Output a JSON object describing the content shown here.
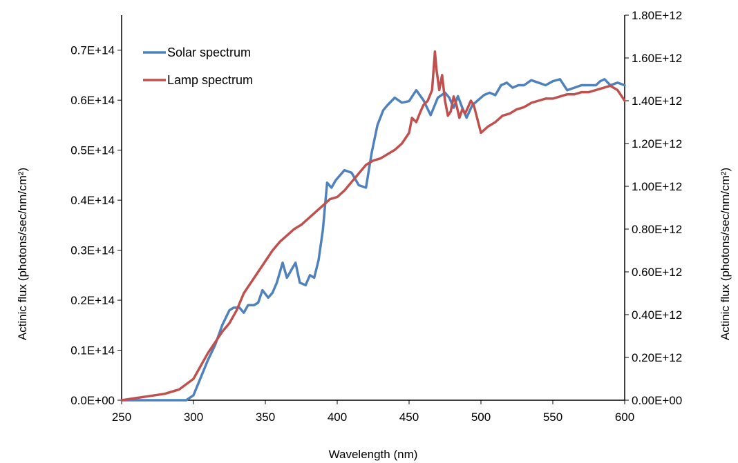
{
  "chart_data": {
    "type": "line",
    "xlabel": "Wavelength (nm)",
    "ylabel_left": "Actinic flux (photons/sec/nm/cm²)",
    "ylabel_right": "Actinic flux (photons/sec/nm/cm²)",
    "xlim": [
      250,
      600
    ],
    "ylim_left": [
      0,
      77000000000000.0
    ],
    "ylim_right": [
      0,
      1800000000000.0
    ],
    "x_ticks": [
      "250",
      "300",
      "350",
      "400",
      "450",
      "500",
      "550",
      "600"
    ],
    "y_left_ticks": [
      "0.0E+00",
      "0.1E+14",
      "0.2E+14",
      "0.3E+14",
      "0.4E+14",
      "0.5E+14",
      "0.6E+14",
      "0.7E+14"
    ],
    "y_right_ticks": [
      "0.00E+00",
      "0.20E+12",
      "0.40E+12",
      "0.60E+12",
      "0.80E+12",
      "1.00E+12",
      "1.20E+12",
      "1.40E+12",
      "1.60E+12",
      "1.80E+12"
    ],
    "grid": false,
    "legend_position": "top-left",
    "series": [
      {
        "name": "Solar spectrum",
        "axis": "left",
        "color": "#4f81bd",
        "x": [
          250,
          270,
          290,
          295,
          300,
          305,
          310,
          315,
          320,
          325,
          328,
          332,
          335,
          338,
          342,
          345,
          348,
          352,
          355,
          358,
          362,
          365,
          368,
          371,
          374,
          378,
          381,
          384,
          387,
          390,
          393,
          396,
          399,
          402,
          405,
          410,
          415,
          420,
          424,
          428,
          432,
          435,
          440,
          445,
          450,
          455,
          460,
          465,
          470,
          475,
          478,
          481,
          484,
          487,
          490,
          494,
          498,
          502,
          506,
          510,
          514,
          518,
          522,
          526,
          530,
          535,
          540,
          545,
          550,
          555,
          560,
          565,
          570,
          575,
          580,
          583,
          586,
          590,
          595,
          600
        ],
        "values": [
          0,
          0,
          0,
          0,
          1000000000000.0,
          4500000000000.0,
          8000000000000.0,
          11000000000000.0,
          15000000000000.0,
          18000000000000.0,
          18500000000000.0,
          18500000000000.0,
          17500000000000.0,
          19000000000000.0,
          19000000000000.0,
          19500000000000.0,
          22000000000000.0,
          20500000000000.0,
          21500000000000.0,
          23500000000000.0,
          27500000000000.0,
          24500000000000.0,
          26000000000000.0,
          27500000000000.0,
          23500000000000.0,
          23000000000000.0,
          25000000000000.0,
          24500000000000.0,
          28000000000000.0,
          34000000000000.0,
          43500000000000.0,
          42500000000000.0,
          44000000000000.0,
          45000000000000.0,
          46000000000000.0,
          45500000000000.0,
          43000000000000.0,
          42500000000000.0,
          49500000000000.0,
          55000000000000.0,
          58000000000000.0,
          59000000000000.0,
          60500000000000.0,
          59500000000000.0,
          59800000000000.0,
          62000000000000.0,
          60000000000000.0,
          57000000000000.0,
          60500000000000.0,
          61500000000000.0,
          60500000000000.0,
          58500000000000.0,
          60800000000000.0,
          58500000000000.0,
          56500000000000.0,
          59000000000000.0,
          60000000000000.0,
          61000000000000.0,
          61500000000000.0,
          61000000000000.0,
          63000000000000.0,
          63500000000000.0,
          62500000000000.0,
          63000000000000.0,
          63000000000000.0,
          64000000000000.0,
          63500000000000.0,
          63000000000000.0,
          63800000000000.0,
          64200000000000.0,
          62000000000000.0,
          62500000000000.0,
          63000000000000.0,
          63000000000000.0,
          63000000000000.0,
          63800000000000.0,
          64200000000000.0,
          63000000000000.0,
          63500000000000.0,
          63000000000000.0
        ]
      },
      {
        "name": "Lamp spectrum",
        "axis": "right",
        "color": "#c0504d",
        "x": [
          250,
          260,
          270,
          280,
          290,
          300,
          305,
          310,
          315,
          320,
          325,
          330,
          335,
          340,
          345,
          350,
          355,
          360,
          365,
          370,
          375,
          380,
          385,
          390,
          395,
          400,
          405,
          410,
          415,
          420,
          425,
          430,
          435,
          440,
          445,
          450,
          452,
          455,
          458,
          460,
          463,
          466,
          468,
          469,
          471,
          473,
          475,
          477,
          479,
          481,
          483,
          485,
          487,
          489,
          491,
          493,
          495,
          500,
          505,
          510,
          515,
          520,
          525,
          530,
          535,
          540,
          545,
          550,
          555,
          560,
          565,
          570,
          575,
          580,
          585,
          590,
          595,
          600
        ],
        "values": [
          0,
          10000000000.0,
          20000000000.0,
          30000000000.0,
          50000000000.0,
          100000000000.0,
          160000000000.0,
          220000000000.0,
          270000000000.0,
          320000000000.0,
          360000000000.0,
          420000000000.0,
          500000000000.0,
          550000000000.0,
          600000000000.0,
          650000000000.0,
          700000000000.0,
          740000000000.0,
          770000000000.0,
          800000000000.0,
          820000000000.0,
          850000000000.0,
          880000000000.0,
          910000000000.0,
          940000000000.0,
          950000000000.0,
          980000000000.0,
          1020000000000.0,
          1060000000000.0,
          1100000000000.0,
          1120000000000.0,
          1130000000000.0,
          1150000000000.0,
          1170000000000.0,
          1200000000000.0,
          1250000000000.0,
          1320000000000.0,
          1300000000000.0,
          1350000000000.0,
          1380000000000.0,
          1400000000000.0,
          1450000000000.0,
          1630000000000.0,
          1550000000000.0,
          1450000000000.0,
          1520000000000.0,
          1400000000000.0,
          1330000000000.0,
          1350000000000.0,
          1420000000000.0,
          1380000000000.0,
          1320000000000.0,
          1360000000000.0,
          1340000000000.0,
          1370000000000.0,
          1400000000000.0,
          1380000000000.0,
          1250000000000.0,
          1280000000000.0,
          1300000000000.0,
          1330000000000.0,
          1340000000000.0,
          1360000000000.0,
          1370000000000.0,
          1390000000000.0,
          1400000000000.0,
          1410000000000.0,
          1410000000000.0,
          1420000000000.0,
          1430000000000.0,
          1430000000000.0,
          1440000000000.0,
          1440000000000.0,
          1450000000000.0,
          1460000000000.0,
          1470000000000.0,
          1450000000000.0,
          1400000000000.0
        ]
      }
    ]
  }
}
